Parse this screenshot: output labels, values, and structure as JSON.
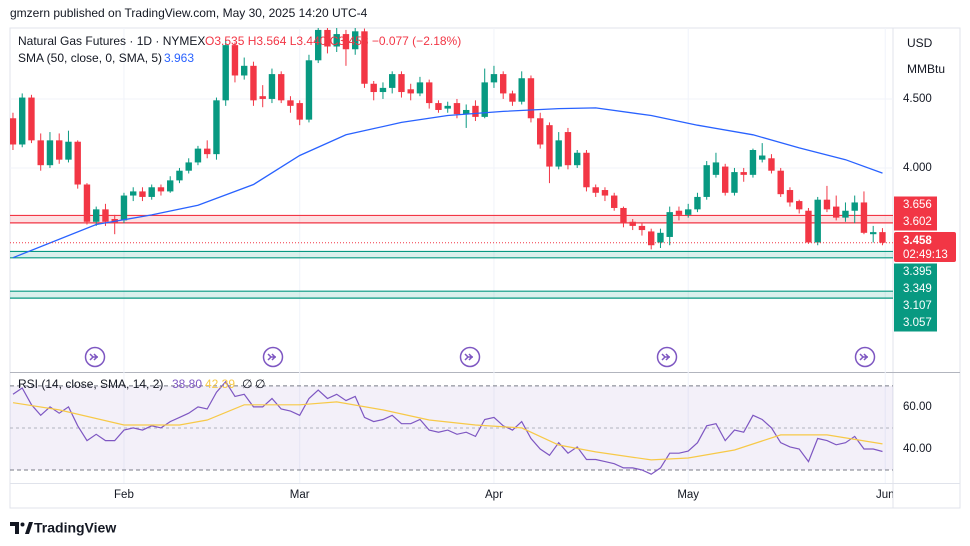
{
  "header": "gmzern published on TradingView.com, May 30, 2025 14:20 UTC-4",
  "footer": "TradingView",
  "chart_data": [
    {
      "type": "candlestick",
      "title": "Natural Gas Futures · 1D · NYMEX",
      "ohlc_legend": "O3.535 H3.564 L3.440 C3.458",
      "change": "−0.077 (−2.18%)",
      "currency": "USD",
      "unit": "MMBtu",
      "up_color": "#089981",
      "down_color": "#f23645",
      "open": [
        4.36,
        4.17,
        4.51,
        4.2,
        4.02,
        4.2,
        4.06,
        4.19,
        3.88,
        3.61,
        3.7,
        3.63,
        3.62,
        3.8,
        3.83,
        3.79,
        3.86,
        3.83,
        3.91,
        3.98,
        4.04,
        4.14,
        4.1,
        4.49,
        4.89,
        4.67,
        4.74,
        4.52,
        4.5,
        4.68,
        4.49,
        4.47,
        4.35,
        4.78,
        5.0,
        4.88,
        4.97,
        4.86,
        4.99,
        4.61,
        4.55,
        4.58,
        4.68,
        4.57,
        4.54,
        4.62,
        4.47,
        4.43,
        4.47,
        4.39,
        4.45,
        4.37,
        4.62,
        4.68,
        4.54,
        4.48,
        4.65,
        4.36,
        4.31,
        4.01,
        4.26,
        4.02,
        4.11,
        3.86,
        3.84,
        3.8,
        3.71,
        3.61,
        3.58,
        3.54,
        3.46,
        3.5,
        3.69,
        3.66,
        3.7,
        3.79,
        3.95,
        4.01,
        3.82,
        3.97,
        3.95,
        4.06,
        4.07,
        3.98,
        3.84,
        3.76,
        3.69,
        3.46,
        3.77,
        3.72,
        3.64,
        3.69,
        3.75,
        3.52,
        3.535
      ],
      "high": [
        4.4,
        4.54,
        4.53,
        4.25,
        4.26,
        4.25,
        4.27,
        4.2,
        3.89,
        3.72,
        3.74,
        3.66,
        3.82,
        3.86,
        3.86,
        3.88,
        3.88,
        3.94,
        4.0,
        4.07,
        4.16,
        4.2,
        4.51,
        4.93,
        4.91,
        4.8,
        4.77,
        4.6,
        4.72,
        4.7,
        4.52,
        4.49,
        4.82,
        5.06,
        5.03,
        5.05,
        5.0,
        5.02,
        5.01,
        4.63,
        4.62,
        4.7,
        4.7,
        4.61,
        4.66,
        4.64,
        4.49,
        4.48,
        4.5,
        4.46,
        4.49,
        4.72,
        4.74,
        4.7,
        4.56,
        4.7,
        4.67,
        4.4,
        4.33,
        4.26,
        4.29,
        4.13,
        4.13,
        3.88,
        3.86,
        3.82,
        3.72,
        3.63,
        3.6,
        3.56,
        3.56,
        3.72,
        3.72,
        3.74,
        3.82,
        4.05,
        4.11,
        4.03,
        4.0,
        4.0,
        4.14,
        4.18,
        4.1,
        4.0,
        3.86,
        3.77,
        3.71,
        3.79,
        3.87,
        3.8,
        3.75,
        3.8,
        3.83,
        3.58,
        3.564
      ],
      "low": [
        4.13,
        4.15,
        4.18,
        3.98,
        4.0,
        4.03,
        4.04,
        3.85,
        3.59,
        3.58,
        3.58,
        3.52,
        3.6,
        3.76,
        3.76,
        3.77,
        3.8,
        3.82,
        3.89,
        3.96,
        4.02,
        4.07,
        4.06,
        4.45,
        4.62,
        4.64,
        4.45,
        4.44,
        4.47,
        4.47,
        4.4,
        4.31,
        4.33,
        4.76,
        4.83,
        4.84,
        4.74,
        4.82,
        4.58,
        4.49,
        4.5,
        4.54,
        4.51,
        4.49,
        4.52,
        4.43,
        4.4,
        4.4,
        4.36,
        4.29,
        4.34,
        4.36,
        4.58,
        4.5,
        4.45,
        4.46,
        4.33,
        4.14,
        3.89,
        3.99,
        3.99,
        4.0,
        3.83,
        3.79,
        3.76,
        3.69,
        3.57,
        3.55,
        3.51,
        3.41,
        3.42,
        3.44,
        3.62,
        3.64,
        3.68,
        3.77,
        3.93,
        3.8,
        3.8,
        3.9,
        3.93,
        4.04,
        3.96,
        3.79,
        3.72,
        3.67,
        3.45,
        3.44,
        3.68,
        3.62,
        3.61,
        3.6,
        3.52,
        3.46,
        3.44
      ],
      "close": [
        4.17,
        4.51,
        4.2,
        4.02,
        4.2,
        4.06,
        4.19,
        3.88,
        3.61,
        3.7,
        3.61,
        3.6,
        3.8,
        3.83,
        3.79,
        3.86,
        3.83,
        3.91,
        3.98,
        4.04,
        4.14,
        4.1,
        4.49,
        4.89,
        4.67,
        4.74,
        4.49,
        4.5,
        4.68,
        4.49,
        4.45,
        4.35,
        4.78,
        5.0,
        4.88,
        4.97,
        4.86,
        4.99,
        4.61,
        4.55,
        4.58,
        4.68,
        4.55,
        4.54,
        4.62,
        4.47,
        4.42,
        4.45,
        4.39,
        4.42,
        4.37,
        4.62,
        4.68,
        4.54,
        4.48,
        4.65,
        4.36,
        4.17,
        4.01,
        4.2,
        4.02,
        4.11,
        3.86,
        3.82,
        3.8,
        3.71,
        3.6,
        3.58,
        3.55,
        3.44,
        3.53,
        3.68,
        3.66,
        3.7,
        3.79,
        4.02,
        4.04,
        3.82,
        3.97,
        3.95,
        4.13,
        4.09,
        3.98,
        3.81,
        3.75,
        3.7,
        3.46,
        3.77,
        3.7,
        3.64,
        3.69,
        3.75,
        3.53,
        3.535,
        3.458
      ],
      "xlim": [
        -0.32,
        95.14
      ],
      "xticks": [
        {
          "value": 12,
          "label": "Feb"
        },
        {
          "value": 31,
          "label": "Mar"
        },
        {
          "value": 52,
          "label": "Apr"
        },
        {
          "value": 73,
          "label": "May"
        },
        {
          "value": 94.3,
          "label": "Jun"
        }
      ],
      "ylim": [
        2.536,
        5.014
      ],
      "yticks": [
        {
          "value": 4,
          "label": "4.000"
        },
        {
          "value": 4.5,
          "label": "4.500"
        }
      ],
      "grid": true,
      "overlays": [
        {
          "name": "SMA (50, close, 0, SMA, 5)",
          "value_label": "3.963",
          "color": "#2962ff",
          "x": [
            0,
            9,
            15,
            20,
            26,
            31,
            36,
            42,
            47,
            53,
            59,
            63,
            69,
            74,
            80,
            85,
            90,
            94
          ],
          "values": [
            3.35,
            3.59,
            3.66,
            3.73,
            3.88,
            4.09,
            4.24,
            4.33,
            4.38,
            4.41,
            4.43,
            4.435,
            4.38,
            4.31,
            4.24,
            4.145,
            4.06,
            3.963
          ]
        }
      ],
      "zones": [
        {
          "color": "#f23645",
          "bounds": [
            {
              "value": 3.656,
              "label": "3.656"
            },
            {
              "value": 3.602,
              "label": "3.602"
            }
          ]
        },
        {
          "color": "#089981",
          "bounds": [
            {
              "value": 3.395,
              "label": "3.395"
            },
            {
              "value": 3.349,
              "label": "3.349"
            }
          ]
        },
        {
          "color": "#089981",
          "bounds": [
            {
              "value": 3.107,
              "label": "3.107"
            },
            {
              "value": 3.057,
              "label": "3.057"
            }
          ]
        }
      ],
      "last_price": {
        "value": 3.458,
        "label": "3.458",
        "countdown": "02:49:13",
        "color": "#f23645"
      }
    },
    {
      "type": "line",
      "title": "RSI (14, close, SMA, 14, 2)",
      "legend_values": [
        "38.80",
        "42.39",
        "∅",
        "∅"
      ],
      "series": [
        {
          "color": "#7e57c2",
          "values": [
            66,
            69,
            61,
            56,
            60,
            57,
            60,
            51,
            44,
            47,
            44,
            44,
            49,
            50,
            49,
            51,
            50,
            53,
            55,
            57,
            60,
            59,
            67,
            72,
            65,
            66,
            60,
            60,
            64,
            59,
            58,
            56,
            64,
            68,
            64,
            66,
            63,
            65,
            55,
            53,
            54,
            56,
            52,
            52,
            54,
            49,
            48,
            49,
            47,
            48,
            46,
            54,
            55,
            51,
            49,
            53,
            45,
            40,
            37,
            43,
            38,
            41,
            35,
            35,
            34,
            33,
            31,
            31,
            30,
            28,
            31,
            38,
            38,
            39,
            43,
            51,
            52,
            44,
            49,
            48,
            56,
            54,
            50,
            43,
            41,
            40,
            34,
            45,
            44,
            42,
            43,
            46,
            40,
            40,
            38.8
          ]
        },
        {
          "color": "#f7c948",
          "x": [
            0,
            5,
            12,
            18,
            21,
            25,
            31,
            35,
            40,
            45,
            50,
            55,
            59,
            63,
            69,
            73,
            78,
            83,
            88,
            94
          ],
          "values": [
            62,
            58.6,
            51.4,
            51.4,
            53.8,
            61,
            61,
            62.4,
            58.6,
            53.8,
            51.4,
            50,
            41.9,
            38.6,
            34.8,
            35.7,
            39.5,
            46.7,
            46.7,
            42.39
          ]
        }
      ],
      "ylim": [
        23.8,
        75.2
      ],
      "yticks": [
        {
          "value": 60,
          "label": "60.00"
        },
        {
          "value": 40,
          "label": "40.00"
        }
      ],
      "bands": [
        70,
        30
      ],
      "midline": 50,
      "band_color": "#7e57c2"
    }
  ]
}
